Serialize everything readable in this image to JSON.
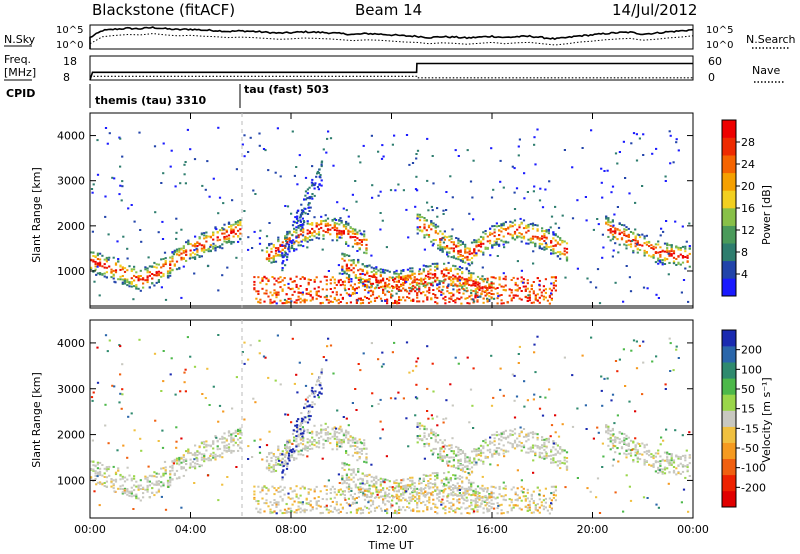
{
  "header": {
    "station": "Blackstone (fitACF)",
    "beam": "Beam 14",
    "date": "14/Jul/2012"
  },
  "top_panels": {
    "nsky_label": "N.Sky",
    "nsearch_label": "N.Search",
    "noise_ticks": [
      "10^5",
      "10^0"
    ],
    "freq_label": "Freq.",
    "freq_unit": "[MHz]",
    "freq_ticks": [
      "18",
      "8"
    ],
    "nave_label": "Nave",
    "nave_ticks": [
      "60",
      "0"
    ],
    "cpid_label": "CPID",
    "cpid_segments": [
      {
        "name": "themis (tau) 3310",
        "start_hour": 0
      },
      {
        "name": "tau (fast) 503",
        "start_hour": 6
      }
    ]
  },
  "colorbars": {
    "power": {
      "label": "Power [dB]",
      "ticks": [
        "4",
        "8",
        "12",
        "16",
        "20",
        "24",
        "28"
      ],
      "colors": [
        "#1a1aff",
        "#2244aa",
        "#2e7d6e",
        "#4a9a5a",
        "#88c048",
        "#f2d020",
        "#f5a000",
        "#f56400",
        "#ee2a00",
        "#ee0000"
      ]
    },
    "velocity": {
      "label": "Velocity [m s⁻¹]",
      "ticks": [
        "200",
        "100",
        "50",
        "15",
        "-15",
        "-50",
        "-100",
        "-200"
      ],
      "colors": [
        "#1a2ab0",
        "#2a66aa",
        "#2f8a6e",
        "#4db84a",
        "#9ad64a",
        "#c8c8c0",
        "#f0c040",
        "#f59a20",
        "#f06010",
        "#ee2200",
        "#e00000"
      ]
    }
  },
  "chart_data": [
    {
      "type": "line",
      "name": "noise",
      "x_range_hours": [
        0,
        24
      ],
      "ylim": [
        0,
        5
      ],
      "yscale": "log",
      "series": [
        {
          "name": "N.Sky",
          "x": [
            0,
            0.5,
            1,
            1.5,
            2,
            2.5,
            3,
            3.5,
            4,
            4.5,
            5,
            5.5,
            6,
            6.5,
            7,
            7.5,
            8,
            8.5,
            9,
            9.5,
            10,
            10.5,
            11,
            11.5,
            12,
            12.5,
            13,
            13.5,
            14,
            14.5,
            15,
            15.5,
            16,
            16.5,
            17,
            17.5,
            18,
            18.5,
            19,
            19.5,
            20,
            20.5,
            21,
            21.5,
            22,
            22.5,
            23,
            23.5,
            24
          ],
          "y": [
            2.6,
            4.2,
            4.5,
            4.7,
            4.6,
            4.9,
            4.6,
            4.4,
            4.5,
            4.3,
            4.2,
            4.0,
            4.1,
            4.0,
            3.8,
            3.6,
            3.7,
            3.9,
            3.8,
            3.7,
            3.5,
            3.3,
            3.5,
            3.4,
            3.2,
            3.0,
            2.9,
            2.6,
            2.8,
            2.7,
            2.5,
            2.7,
            2.9,
            2.6,
            2.8,
            2.9,
            2.6,
            2.3,
            2.6,
            3.0,
            3.2,
            3.5,
            3.7,
            3.8,
            3.4,
            3.6,
            3.9,
            4.1,
            4.4
          ]
        }
      ]
    },
    {
      "type": "line",
      "name": "frequency-nave",
      "x_range_hours": [
        0,
        24
      ],
      "series": [
        {
          "name": "Freq.",
          "x": [
            0.0,
            0.1,
            13.0,
            13.01,
            24
          ],
          "y": [
            8.0,
            11.5,
            11.5,
            15.5,
            15.5
          ]
        },
        {
          "name": "Nave",
          "x": [
            0,
            13,
            13.01,
            24
          ],
          "y": [
            10,
            10,
            6,
            6
          ]
        }
      ]
    },
    {
      "type": "heatmap",
      "name": "power",
      "xlabel": "Time UT",
      "ylabel": "Slant Range [km]",
      "x_range_hours": [
        0,
        24
      ],
      "xticks": [
        "00:00",
        "04:00",
        "08:00",
        "12:00",
        "16:00",
        "20:00",
        "00:00"
      ],
      "ylim": [
        180,
        4500
      ],
      "yticks": [
        1000,
        2000,
        3000,
        4000
      ],
      "echo_bands": [
        {
          "t": [
            0,
            1,
            2,
            3,
            4,
            5,
            6
          ],
          "r": [
            1250,
            1050,
            800,
            1100,
            1500,
            1750,
            1950
          ]
        },
        {
          "t": [
            7,
            8,
            9,
            10,
            11
          ],
          "r": [
            1350,
            1700,
            2000,
            1900,
            1600
          ]
        },
        {
          "t": [
            10,
            11,
            12,
            13,
            14,
            15,
            16
          ],
          "r": [
            1200,
            900,
            750,
            850,
            1000,
            800,
            550
          ]
        },
        {
          "t": [
            13,
            14,
            15,
            16,
            17,
            18,
            19
          ],
          "r": [
            2100,
            1700,
            1350,
            1800,
            1950,
            1750,
            1450
          ]
        },
        {
          "t": [
            20.5,
            21.5,
            22.5,
            24
          ],
          "r": [
            2000,
            1700,
            1450,
            1300
          ]
        }
      ],
      "near_range_band": {
        "t": [
          6.5,
          18.5
        ],
        "r": [
          300,
          900
        ]
      },
      "clim": [
        0,
        30
      ]
    },
    {
      "type": "heatmap",
      "name": "velocity",
      "xlabel": "Time UT",
      "ylabel": "Slant Range [km]",
      "x_range_hours": [
        0,
        24
      ],
      "xticks": [
        "00:00",
        "04:00",
        "08:00",
        "12:00",
        "16:00",
        "20:00",
        "00:00"
      ],
      "ylim": [
        180,
        4500
      ],
      "yticks": [
        1000,
        2000,
        3000,
        4000
      ],
      "clim": [
        -250,
        250
      ]
    }
  ]
}
